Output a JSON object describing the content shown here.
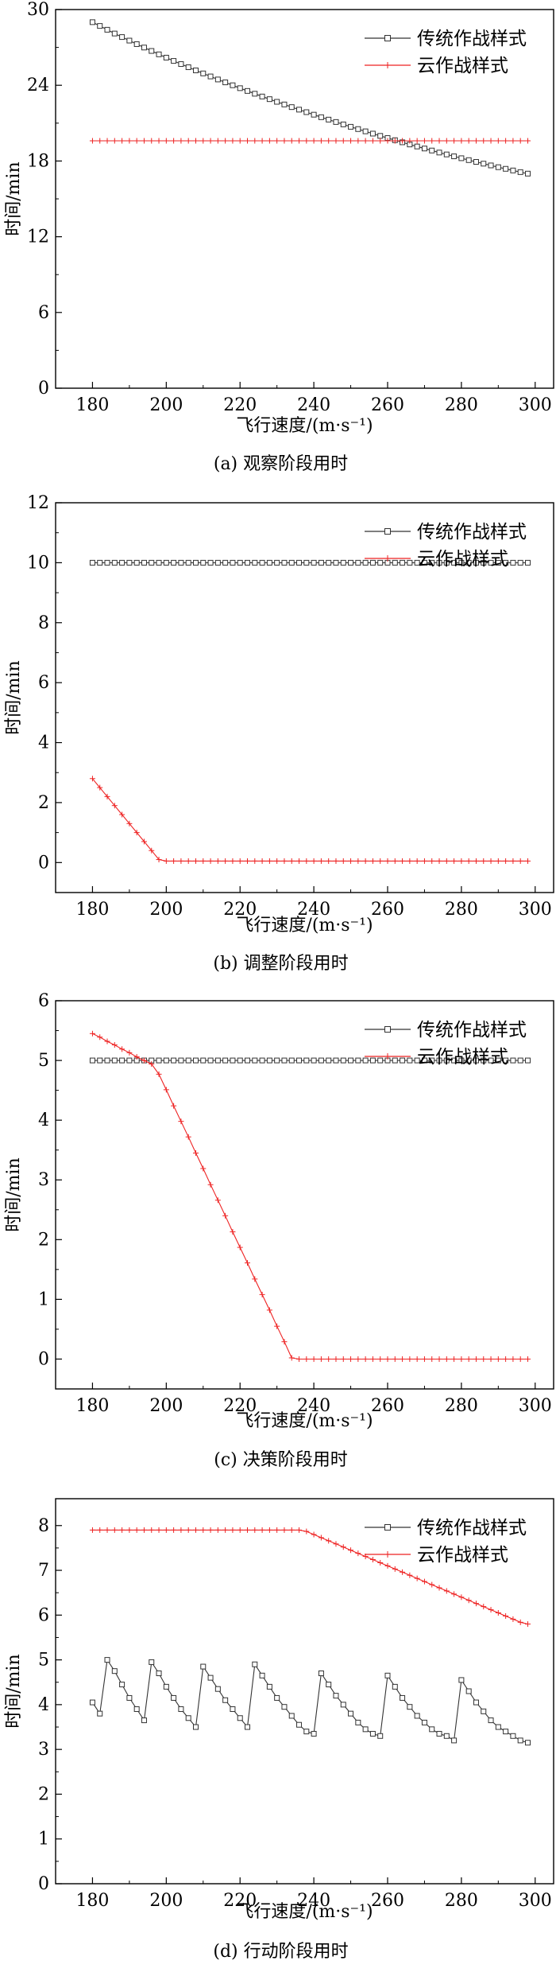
{
  "chart_data": [
    {
      "type": "line",
      "caption": "(a) 观察阶段用时",
      "xlabel": "飞行速度/(m·s⁻¹)",
      "ylabel": "时间/min",
      "xlim": [
        170,
        305
      ],
      "ylim": [
        0,
        30
      ],
      "xticks": [
        180,
        200,
        220,
        240,
        260,
        280,
        300
      ],
      "yticks": [
        0,
        6,
        12,
        18,
        24,
        30
      ],
      "legend_position": "top-right",
      "grid": false,
      "series": [
        {
          "name": "传统作战样式",
          "marker": "square",
          "color": "#333333",
          "x_start": 180,
          "x_step": 2,
          "count": 60,
          "values": [
            29.0,
            28.7,
            28.4,
            28.1,
            27.82,
            27.54,
            27.26,
            26.99,
            26.72,
            26.45,
            26.19,
            25.93,
            25.68,
            25.43,
            25.18,
            24.94,
            24.7,
            24.46,
            24.23,
            24.0,
            23.77,
            23.55,
            23.33,
            23.11,
            22.9,
            22.69,
            22.48,
            22.27,
            22.07,
            21.87,
            21.67,
            21.47,
            21.28,
            21.09,
            20.9,
            20.71,
            20.53,
            20.35,
            20.17,
            19.99,
            19.82,
            19.65,
            19.48,
            19.31,
            19.15,
            18.99,
            18.83,
            18.67,
            18.52,
            18.37,
            18.22,
            18.07,
            17.93,
            17.79,
            17.65,
            17.51,
            17.38,
            17.25,
            17.12,
            17.0
          ]
        },
        {
          "name": "云作战样式",
          "marker": "plus",
          "color": "#ee2222",
          "x_start": 180,
          "x_step": 2,
          "count": 60,
          "values": [
            19.6,
            19.6,
            19.6,
            19.6,
            19.6,
            19.6,
            19.6,
            19.6,
            19.6,
            19.6,
            19.6,
            19.6,
            19.6,
            19.6,
            19.6,
            19.6,
            19.6,
            19.6,
            19.6,
            19.6,
            19.6,
            19.6,
            19.6,
            19.6,
            19.6,
            19.6,
            19.6,
            19.6,
            19.6,
            19.6,
            19.6,
            19.6,
            19.6,
            19.6,
            19.6,
            19.6,
            19.6,
            19.6,
            19.6,
            19.6,
            19.6,
            19.6,
            19.6,
            19.6,
            19.6,
            19.6,
            19.6,
            19.6,
            19.6,
            19.6,
            19.6,
            19.6,
            19.6,
            19.6,
            19.6,
            19.6,
            19.6,
            19.6,
            19.6,
            19.6
          ]
        }
      ]
    },
    {
      "type": "line",
      "caption": "(b) 调整阶段用时",
      "xlabel": "飞行速度/(m·s⁻¹)",
      "ylabel": "时间/min",
      "xlim": [
        170,
        305
      ],
      "ylim": [
        -1,
        12
      ],
      "xticks": [
        180,
        200,
        220,
        240,
        260,
        280,
        300
      ],
      "yticks": [
        0,
        2,
        4,
        6,
        8,
        10,
        12
      ],
      "legend_position": "top-right",
      "grid": false,
      "series": [
        {
          "name": "传统作战样式",
          "marker": "square",
          "color": "#333333",
          "x_start": 180,
          "x_step": 2,
          "count": 60,
          "values": [
            10,
            10,
            10,
            10,
            10,
            10,
            10,
            10,
            10,
            10,
            10,
            10,
            10,
            10,
            10,
            10,
            10,
            10,
            10,
            10,
            10,
            10,
            10,
            10,
            10,
            10,
            10,
            10,
            10,
            10,
            10,
            10,
            10,
            10,
            10,
            10,
            10,
            10,
            10,
            10,
            10,
            10,
            10,
            10,
            10,
            10,
            10,
            10,
            10,
            10,
            10,
            10,
            10,
            10,
            10,
            10,
            10,
            10,
            10,
            10
          ]
        },
        {
          "name": "云作战样式",
          "marker": "plus",
          "color": "#ee2222",
          "x_start": 180,
          "x_step": 2,
          "count": 60,
          "values": [
            2.8,
            2.5,
            2.2,
            1.9,
            1.6,
            1.3,
            1.0,
            0.7,
            0.4,
            0.1,
            0.05,
            0.05,
            0.05,
            0.05,
            0.05,
            0.05,
            0.05,
            0.05,
            0.05,
            0.05,
            0.05,
            0.05,
            0.05,
            0.05,
            0.05,
            0.05,
            0.05,
            0.05,
            0.05,
            0.05,
            0.05,
            0.05,
            0.05,
            0.05,
            0.05,
            0.05,
            0.05,
            0.05,
            0.05,
            0.05,
            0.05,
            0.05,
            0.05,
            0.05,
            0.05,
            0.05,
            0.05,
            0.05,
            0.05,
            0.05,
            0.05,
            0.05,
            0.05,
            0.05,
            0.05,
            0.05,
            0.05,
            0.05,
            0.05,
            0.05
          ]
        }
      ]
    },
    {
      "type": "line",
      "caption": "(c) 决策阶段用时",
      "xlabel": "飞行速度/(m·s⁻¹)",
      "ylabel": "时间/min",
      "xlim": [
        170,
        305
      ],
      "ylim": [
        -0.5,
        6
      ],
      "xticks": [
        180,
        200,
        220,
        240,
        260,
        280,
        300
      ],
      "yticks": [
        0,
        1,
        2,
        3,
        4,
        5,
        6
      ],
      "legend_position": "top-right",
      "grid": false,
      "series": [
        {
          "name": "传统作战样式",
          "marker": "square",
          "color": "#333333",
          "x_start": 180,
          "x_step": 2,
          "count": 60,
          "values": [
            5,
            5,
            5,
            5,
            5,
            5,
            5,
            5,
            5,
            5,
            5,
            5,
            5,
            5,
            5,
            5,
            5,
            5,
            5,
            5,
            5,
            5,
            5,
            5,
            5,
            5,
            5,
            5,
            5,
            5,
            5,
            5,
            5,
            5,
            5,
            5,
            5,
            5,
            5,
            5,
            5,
            5,
            5,
            5,
            5,
            5,
            5,
            5,
            5,
            5,
            5,
            5,
            5,
            5,
            5,
            5,
            5,
            5,
            5,
            5
          ]
        },
        {
          "name": "云作战样式",
          "marker": "plus",
          "color": "#ee2222",
          "x_start": 180,
          "x_step": 2,
          "count": 60,
          "values": [
            5.45,
            5.39,
            5.32,
            5.26,
            5.19,
            5.13,
            5.06,
            5.0,
            4.94,
            4.77,
            4.51,
            4.24,
            3.98,
            3.72,
            3.45,
            3.19,
            2.92,
            2.66,
            2.4,
            2.13,
            1.87,
            1.61,
            1.34,
            1.08,
            0.82,
            0.55,
            0.29,
            0.02,
            0,
            0,
            0,
            0,
            0,
            0,
            0,
            0,
            0,
            0,
            0,
            0,
            0,
            0,
            0,
            0,
            0,
            0,
            0,
            0,
            0,
            0,
            0,
            0,
            0,
            0,
            0,
            0,
            0,
            0,
            0,
            0
          ]
        }
      ]
    },
    {
      "type": "line",
      "caption": "(d) 行动阶段用时",
      "xlabel": "飞行速度/(m·s⁻¹)",
      "ylabel": "时间/min",
      "xlim": [
        170,
        305
      ],
      "ylim": [
        0,
        8.6
      ],
      "xticks": [
        180,
        200,
        220,
        240,
        260,
        280,
        300
      ],
      "yticks": [
        0,
        1,
        2,
        3,
        4,
        5,
        6,
        7,
        8
      ],
      "legend_position": "top-right",
      "grid": false,
      "series": [
        {
          "name": "传统作战样式",
          "marker": "square",
          "color": "#333333",
          "x_start": 180,
          "x_step": 2,
          "count": 60,
          "values": [
            4.05,
            3.8,
            5.0,
            4.75,
            4.45,
            4.15,
            3.9,
            3.65,
            4.95,
            4.7,
            4.4,
            4.15,
            3.9,
            3.7,
            3.5,
            4.85,
            4.6,
            4.35,
            4.1,
            3.9,
            3.7,
            3.5,
            4.9,
            4.65,
            4.4,
            4.15,
            3.95,
            3.75,
            3.55,
            3.4,
            3.35,
            4.7,
            4.45,
            4.2,
            4.0,
            3.8,
            3.6,
            3.45,
            3.35,
            3.3,
            4.65,
            4.4,
            4.15,
            3.95,
            3.75,
            3.6,
            3.45,
            3.35,
            3.3,
            3.2,
            4.55,
            4.3,
            4.05,
            3.85,
            3.65,
            3.5,
            3.4,
            3.3,
            3.2,
            3.15
          ]
        },
        {
          "name": "云作战样式",
          "marker": "plus",
          "color": "#ee2222",
          "x_start": 180,
          "x_step": 2,
          "count": 60,
          "values": [
            7.9,
            7.9,
            7.9,
            7.9,
            7.9,
            7.9,
            7.9,
            7.9,
            7.9,
            7.9,
            7.9,
            7.9,
            7.9,
            7.9,
            7.9,
            7.9,
            7.9,
            7.9,
            7.9,
            7.9,
            7.9,
            7.9,
            7.9,
            7.9,
            7.9,
            7.9,
            7.9,
            7.9,
            7.9,
            7.87,
            7.8,
            7.73,
            7.66,
            7.59,
            7.52,
            7.45,
            7.38,
            7.31,
            7.24,
            7.17,
            7.1,
            7.03,
            6.96,
            6.89,
            6.82,
            6.75,
            6.68,
            6.61,
            6.54,
            6.47,
            6.4,
            6.33,
            6.26,
            6.19,
            6.12,
            6.05,
            5.98,
            5.91,
            5.84,
            5.8
          ]
        }
      ]
    }
  ]
}
